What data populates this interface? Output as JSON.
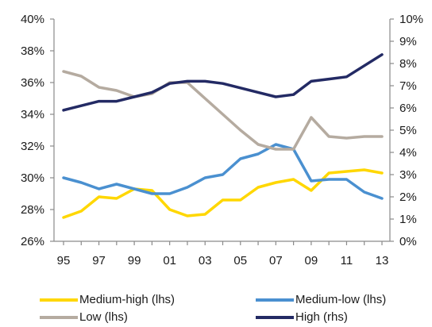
{
  "chart_data": {
    "type": "line",
    "title": "",
    "x": [
      "95",
      "96",
      "97",
      "98",
      "99",
      "00",
      "01",
      "02",
      "03",
      "04",
      "05",
      "06",
      "07",
      "08",
      "09",
      "10",
      "11",
      "12",
      "13"
    ],
    "x_tick_labels": [
      "95",
      "97",
      "99",
      "01",
      "03",
      "05",
      "07",
      "09",
      "11",
      "13"
    ],
    "y_left": {
      "range": [
        26,
        40
      ],
      "ticks": [
        "26%",
        "28%",
        "30%",
        "32%",
        "34%",
        "36%",
        "38%",
        "40%"
      ]
    },
    "y_right": {
      "range": [
        0,
        10
      ],
      "ticks": [
        "0%",
        "1%",
        "2%",
        "3%",
        "4%",
        "5%",
        "6%",
        "7%",
        "8%",
        "9%",
        "10%"
      ]
    },
    "grid": false,
    "legend_position": "bottom",
    "series": [
      {
        "name": "Medium-high (lhs)",
        "axis": "left",
        "color": "#FFD700",
        "values": [
          27.5,
          27.9,
          28.8,
          28.7,
          29.3,
          29.2,
          28.0,
          27.6,
          27.7,
          28.6,
          28.6,
          29.4,
          29.7,
          29.9,
          29.2,
          30.3,
          30.4,
          30.5,
          30.3
        ]
      },
      {
        "name": "Medium-low (lhs)",
        "axis": "left",
        "color": "#4A90D0",
        "values": [
          30.0,
          29.7,
          29.3,
          29.6,
          29.3,
          29.0,
          29.0,
          29.4,
          30.0,
          30.2,
          31.2,
          31.5,
          32.1,
          31.8,
          29.8,
          29.9,
          29.9,
          29.1,
          28.7
        ]
      },
      {
        "name": "Low (lhs)",
        "axis": "left",
        "color": "#B5ABA0",
        "values": [
          36.7,
          36.4,
          35.7,
          35.5,
          35.1,
          35.3,
          36.0,
          36.0,
          35.0,
          34.0,
          33.0,
          32.1,
          31.8,
          31.8,
          33.8,
          32.6,
          32.5,
          32.6,
          32.6
        ]
      },
      {
        "name": "High (rhs)",
        "axis": "right",
        "color": "#232A64",
        "values": [
          5.9,
          6.1,
          6.3,
          6.3,
          6.5,
          6.7,
          7.1,
          7.2,
          7.2,
          7.1,
          6.9,
          6.7,
          6.5,
          6.6,
          7.2,
          7.3,
          7.4,
          7.9,
          8.4
        ]
      }
    ]
  }
}
